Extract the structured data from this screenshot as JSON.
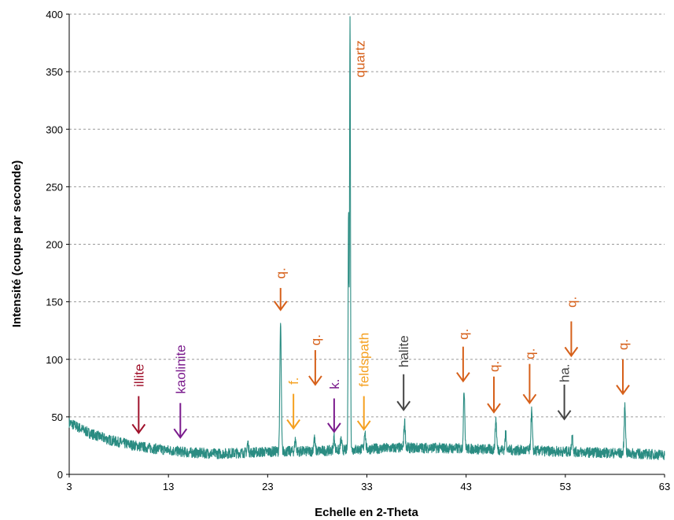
{
  "chart_data": {
    "type": "line",
    "title": "",
    "xlabel": "Echelle en 2-Theta",
    "ylabel": "Intensité (coups par seconde)",
    "xlim": [
      3,
      63
    ],
    "ylim": [
      0,
      400
    ],
    "x_ticks": [
      3,
      13,
      23,
      33,
      43,
      53,
      63
    ],
    "y_ticks": [
      0,
      50,
      100,
      150,
      200,
      250,
      300,
      350,
      400
    ],
    "grid": "horizontal dashed",
    "line_color": "#2a8c82",
    "baseline": [
      [
        3,
        45
      ],
      [
        5,
        36
      ],
      [
        7,
        30
      ],
      [
        9,
        26
      ],
      [
        11,
        23
      ],
      [
        13,
        21
      ],
      [
        15,
        19
      ],
      [
        18,
        18
      ],
      [
        21,
        19
      ],
      [
        24,
        20
      ],
      [
        27,
        20
      ],
      [
        30,
        21
      ],
      [
        33,
        22
      ],
      [
        36,
        23
      ],
      [
        40,
        23
      ],
      [
        44,
        22
      ],
      [
        48,
        21
      ],
      [
        52,
        20
      ],
      [
        56,
        19
      ],
      [
        60,
        18
      ],
      [
        63,
        17
      ]
    ],
    "peaks": [
      {
        "x": 21.0,
        "y": 27
      },
      {
        "x": 24.3,
        "y": 131
      },
      {
        "x": 25.8,
        "y": 30
      },
      {
        "x": 27.7,
        "y": 32
      },
      {
        "x": 29.7,
        "y": 33
      },
      {
        "x": 30.4,
        "y": 30
      },
      {
        "x": 31.15,
        "y": 228
      },
      {
        "x": 31.3,
        "y": 400
      },
      {
        "x": 32.8,
        "y": 38
      },
      {
        "x": 36.8,
        "y": 46
      },
      {
        "x": 42.8,
        "y": 73
      },
      {
        "x": 46.0,
        "y": 48
      },
      {
        "x": 47.0,
        "y": 36
      },
      {
        "x": 49.6,
        "y": 55
      },
      {
        "x": 53.7,
        "y": 34
      },
      {
        "x": 59.0,
        "y": 60
      }
    ],
    "annotations": [
      {
        "label": "illite",
        "color": "#a0122c",
        "x": 10.0,
        "arrow_from": 68,
        "arrow_to": 36,
        "text_from": 76,
        "text_to": 98
      },
      {
        "label": "kaolinite",
        "color": "#7a1a8c",
        "x": 14.2,
        "arrow_from": 62,
        "arrow_to": 32,
        "text_from": 70,
        "text_to": 112
      },
      {
        "label": "q.",
        "color": "#d6601a",
        "x": 24.3,
        "arrow_from": 162,
        "arrow_to": 143,
        "text_from": 170,
        "text_to": 182
      },
      {
        "label": "f.",
        "color": "#f5a020",
        "x": 25.6,
        "arrow_from": 70,
        "arrow_to": 40,
        "text_from": 78,
        "text_to": 90
      },
      {
        "label": "q.",
        "color": "#d6601a",
        "x": 27.8,
        "arrow_from": 108,
        "arrow_to": 78,
        "text_from": 112,
        "text_to": 124
      },
      {
        "label": "k.",
        "color": "#7a1a8c",
        "x": 29.7,
        "arrow_from": 66,
        "arrow_to": 37,
        "text_from": 74,
        "text_to": 86
      },
      {
        "label": "feldspath",
        "color": "#f5a020",
        "x": 32.7,
        "arrow_from": 68,
        "arrow_to": 39,
        "text_from": 76,
        "text_to": 132
      },
      {
        "label": "halite",
        "color": "#444444",
        "x": 36.7,
        "arrow_from": 87,
        "arrow_to": 56,
        "text_from": 93,
        "text_to": 131
      },
      {
        "label": "q.",
        "color": "#d6601a",
        "x": 42.7,
        "arrow_from": 111,
        "arrow_to": 81,
        "text_from": 117,
        "text_to": 129
      },
      {
        "label": "q.",
        "color": "#d6601a",
        "x": 45.8,
        "arrow_from": 85,
        "arrow_to": 54,
        "text_from": 89,
        "text_to": 101
      },
      {
        "label": "q.",
        "color": "#d6601a",
        "x": 49.4,
        "arrow_from": 96,
        "arrow_to": 62,
        "text_from": 100,
        "text_to": 112
      },
      {
        "label": "ha.",
        "color": "#444444",
        "x": 52.9,
        "arrow_from": 78,
        "arrow_to": 48,
        "text_from": 80,
        "text_to": 98
      },
      {
        "label": "q.",
        "color": "#d6601a",
        "x": 53.6,
        "arrow_from": 133,
        "arrow_to": 103,
        "text_from": 145,
        "text_to": 157
      },
      {
        "label": "q.",
        "color": "#d6601a",
        "x": 58.8,
        "arrow_from": 100,
        "arrow_to": 70,
        "text_from": 108,
        "text_to": 120
      }
    ],
    "peak_label": {
      "label": "quartz",
      "color": "#d6601a",
      "x": 32.3,
      "text_from": 345,
      "text_to": 392
    }
  }
}
